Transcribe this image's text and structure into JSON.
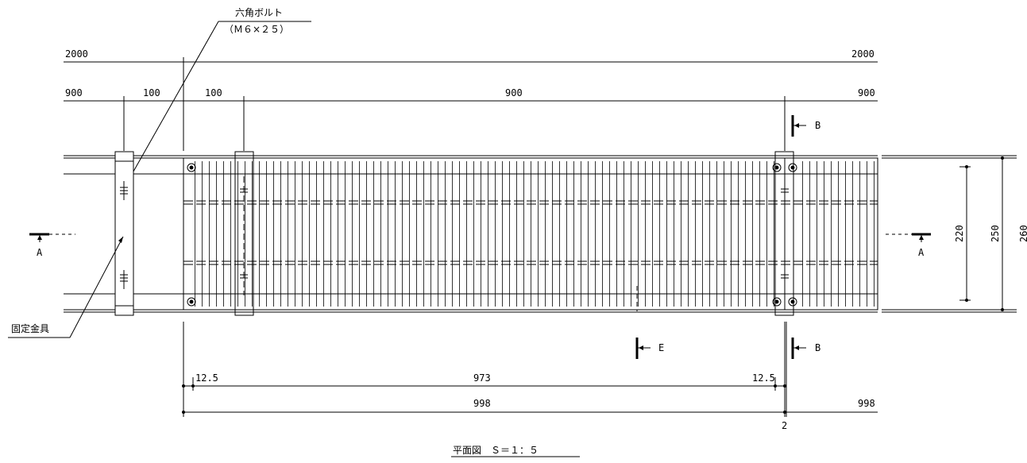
{
  "callouts": {
    "bolt_name": "六角ボルト",
    "bolt_size": "（Ｍ６×２５）",
    "bracket_name": "固定金具"
  },
  "dimensions": {
    "total_left": "2000",
    "total_right": "2000",
    "row2_left": "900",
    "row2_gap_a": "100",
    "row2_gap_b": "100",
    "row2_center": "900",
    "row2_right": "900",
    "bottom_left_offset": "12.5",
    "bottom_center": "973",
    "bottom_right_offset": "12.5",
    "bottom_overall": "998",
    "bottom_overall_right": "998",
    "bottom_gap": "2",
    "height_inner": "220",
    "height_mid": "250",
    "height_outer": "260"
  },
  "section_markers": {
    "left": "A",
    "right": "A",
    "top": "B",
    "bottom": "B",
    "center": "E"
  },
  "caption": "平面図　Ｓ＝１：５",
  "grating": {
    "bar_count": 95
  }
}
